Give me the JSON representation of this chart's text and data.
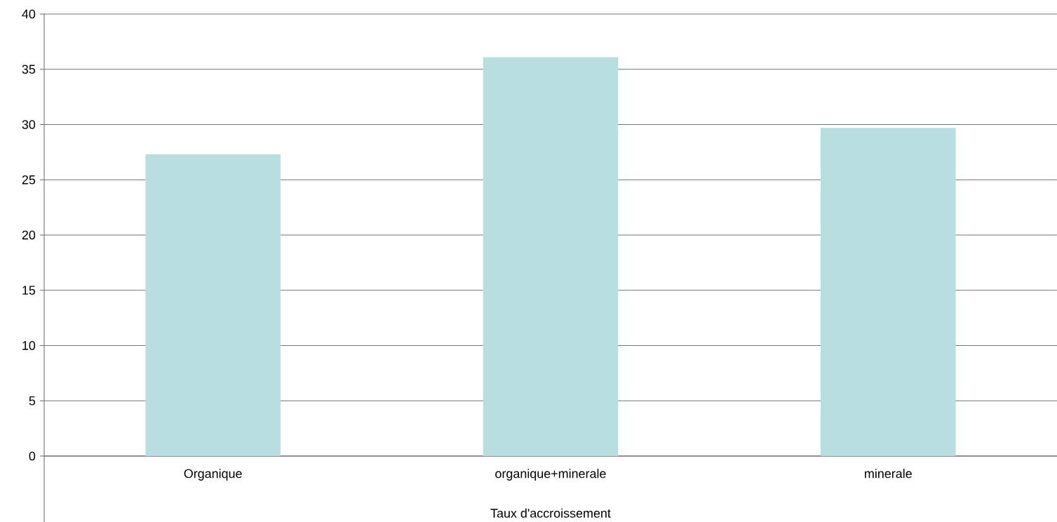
{
  "chart_data": {
    "type": "bar",
    "xlabel": "Taux d'accroissement",
    "categories": [
      "Organique",
      "organique+minerale",
      "minerale"
    ],
    "values": [
      27.3,
      36.1,
      29.7
    ],
    "color": "#b7dfe0",
    "ylim": [
      0,
      40
    ],
    "yticks": [
      0,
      5,
      10,
      15,
      20,
      25,
      30,
      35,
      40
    ],
    "grid": "y"
  }
}
